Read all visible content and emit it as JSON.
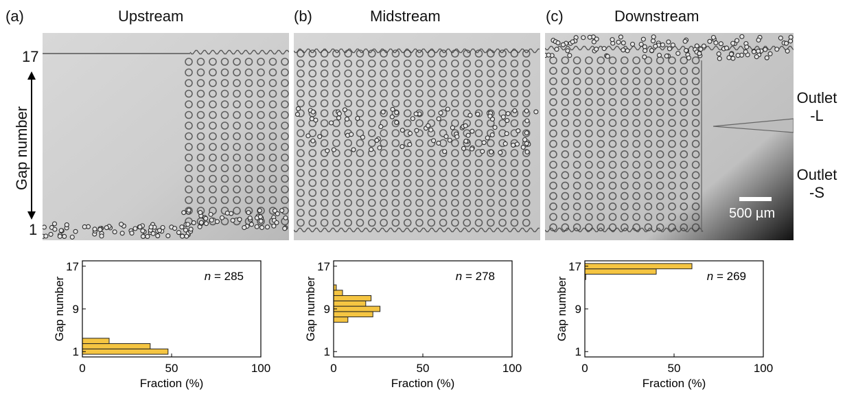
{
  "figure": {
    "panels": [
      {
        "label": "(a)",
        "title": "Upstream"
      },
      {
        "label": "(b)",
        "title": "Midstream"
      },
      {
        "label": "(c)",
        "title": "Downstream"
      }
    ],
    "left_axis": {
      "top_tick": "17",
      "bottom_tick": "1",
      "label": "Gap number"
    },
    "outlets": {
      "top": [
        "Outlet",
        "-L"
      ],
      "bottom": [
        "Outlet",
        "-S"
      ]
    },
    "scale_bar": "500 µm",
    "colors": {
      "bar_fill": "#f5c542",
      "bar_edge": "#222222"
    }
  },
  "chart_data": [
    {
      "type": "bar",
      "orientation": "horizontal",
      "panel": "(a)",
      "xlabel": "Fraction (%)",
      "ylabel": "Gap number",
      "xlim": [
        0,
        100
      ],
      "xticks": [
        0,
        50,
        100
      ],
      "ylim": [
        0,
        18
      ],
      "yticks": [
        1,
        9,
        17
      ],
      "annotation": {
        "italic": "n",
        "text": " = 285"
      },
      "series": [
        {
          "gaps": [
            1,
            2,
            3
          ],
          "values": [
            48,
            38,
            15
          ]
        }
      ]
    },
    {
      "type": "bar",
      "orientation": "horizontal",
      "panel": "(b)",
      "xlabel": "Fraction (%)",
      "ylabel": "Gap number",
      "xlim": [
        0,
        100
      ],
      "xticks": [
        0,
        50,
        100
      ],
      "ylim": [
        0,
        18
      ],
      "yticks": [
        1,
        9,
        17
      ],
      "annotation": {
        "italic": "n",
        "text": " = 278"
      },
      "series": [
        {
          "gaps": [
            7,
            8,
            9,
            10,
            11,
            12,
            13
          ],
          "values": [
            8,
            22,
            26,
            18,
            21,
            5,
            1.5
          ]
        }
      ]
    },
    {
      "type": "bar",
      "orientation": "horizontal",
      "panel": "(c)",
      "xlabel": "Fraction (%)",
      "ylabel": "Gap number",
      "xlim": [
        0,
        100
      ],
      "xticks": [
        0,
        50,
        100
      ],
      "ylim": [
        0,
        18
      ],
      "yticks": [
        1,
        9,
        17
      ],
      "annotation": {
        "italic": "n",
        "text": " = 269"
      },
      "series": [
        {
          "gaps": [
            15,
            16,
            17
          ],
          "values": [
            0.5,
            40,
            60
          ]
        }
      ]
    }
  ]
}
